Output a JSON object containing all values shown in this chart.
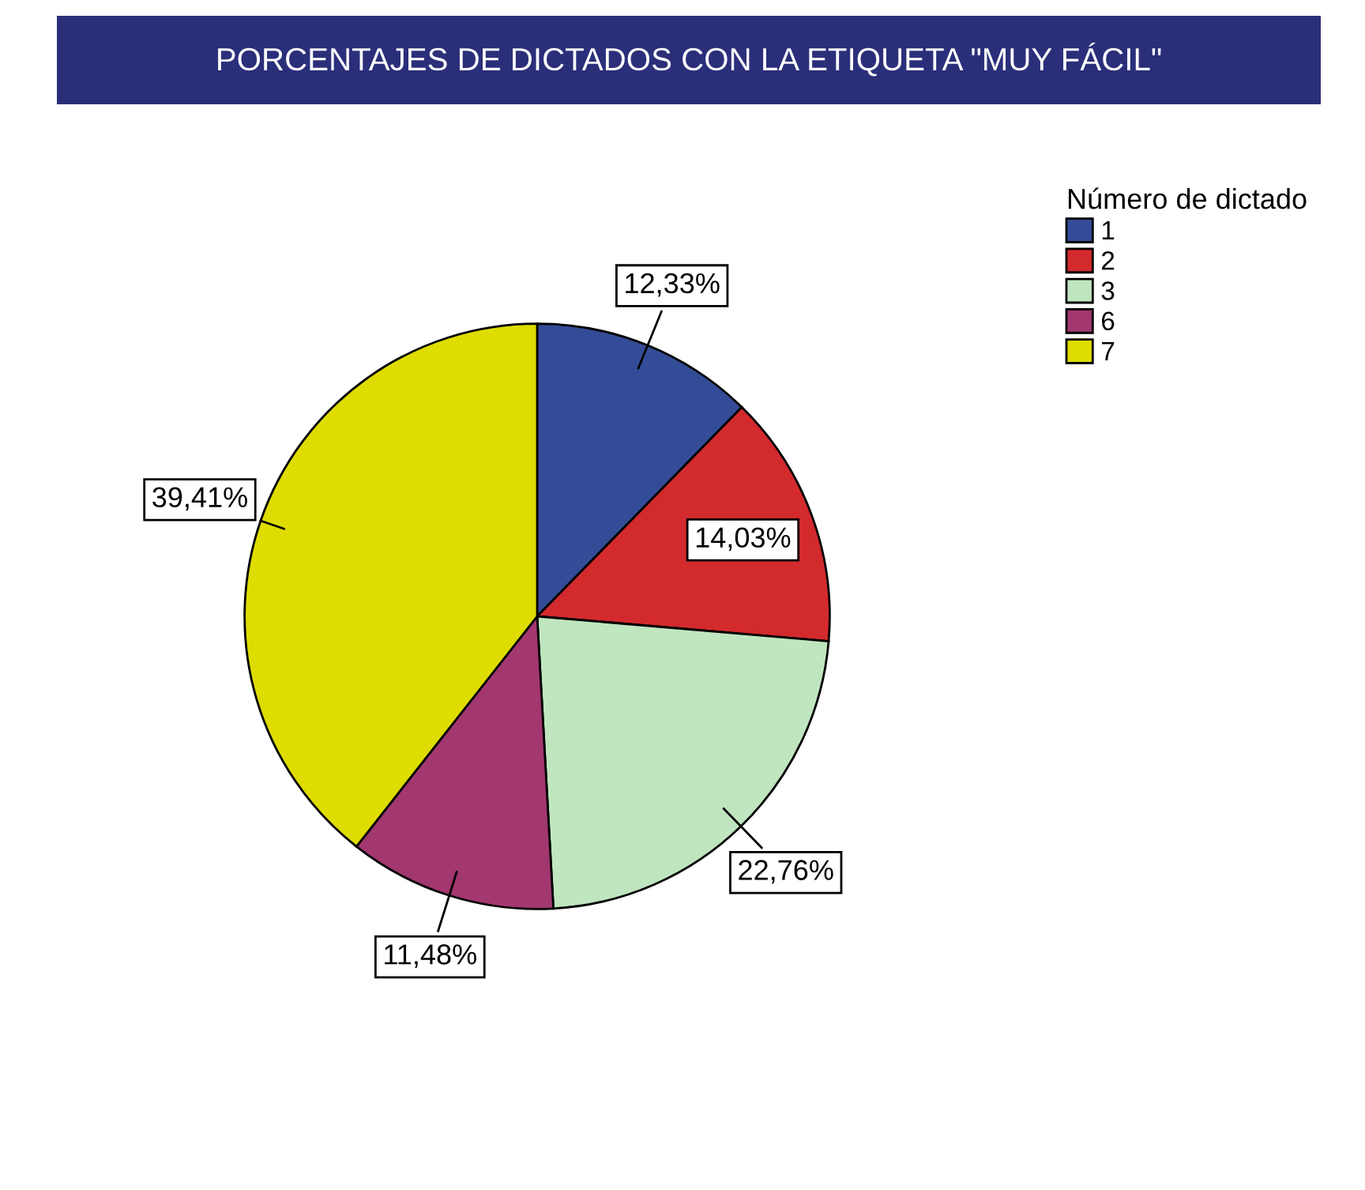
{
  "chart_data": {
    "type": "pie",
    "title": "PORCENTAJES DE DICTADOS CON LA ETIQUETA \"MUY FÁCIL\"",
    "legend_title": "Número de dictado",
    "categories": [
      "1",
      "2",
      "3",
      "6",
      "7"
    ],
    "values": [
      12.33,
      14.03,
      22.76,
      11.48,
      39.41
    ],
    "colors": [
      "#344c97",
      "#d32a2e",
      "#c0e6c0",
      "#a3376f",
      "#dedc00"
    ],
    "value_labels": [
      "12,33%",
      "14,03%",
      "22,76%",
      "11,48%",
      "39,41%"
    ],
    "legend": "top right"
  }
}
